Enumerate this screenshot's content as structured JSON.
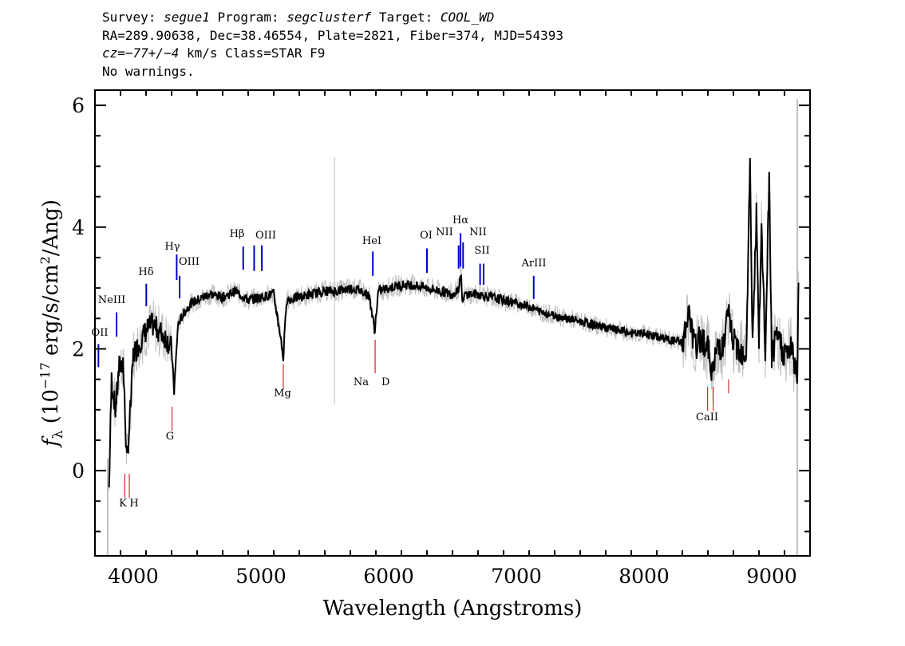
{
  "header": {
    "survey_label": "Survey:",
    "survey": "segue1",
    "program_label": "Program:",
    "program": "segclusterf",
    "target_label": "Target:",
    "target": "COOL_WD",
    "line2": "RA=289.90638, Dec=38.46554, Plate=2821, Fiber=374, MJD=54393",
    "cz": "cz=−77+/−4",
    "class_text": " km/s Class=STAR F9",
    "warnings": "No warnings."
  },
  "chart_data": {
    "type": "line",
    "xlabel": "Wavelength (Angstroms)",
    "ylabel": "f_λ (10^-17 erg/s/cm^2/Ang)",
    "xlim": [
      3700,
      9300
    ],
    "ylim": [
      -1.4,
      6.25
    ],
    "xticks": [
      "4000",
      "5000",
      "6000",
      "7000",
      "8000",
      "9000"
    ],
    "yticks": [
      "0",
      "2",
      "4",
      "6"
    ],
    "colors": {
      "data": "#c0c0c0",
      "model": "#000000",
      "emission": "#0000cc",
      "absorption": "#cc0000"
    },
    "series": [
      {
        "name": "",
        "x": [
          3810,
          3830,
          3860,
          3890,
          3920,
          3950,
          3980,
          4000,
          4050,
          4100,
          4150,
          4200,
          4250,
          4300,
          4320,
          4350,
          4400,
          4450,
          4500,
          4600,
          4700,
          4800,
          4900,
          5000,
          5100,
          5150,
          5175,
          5200,
          5300,
          5400,
          5500,
          5600,
          5700,
          5800,
          5850,
          5890,
          5920,
          6000,
          6100,
          6200,
          6300,
          6400,
          6500,
          6550,
          6565,
          6580,
          6600,
          6700,
          6800,
          6900,
          7000,
          7100,
          7200,
          7300,
          7400,
          7500,
          7600,
          7700,
          7800,
          7900,
          8000,
          8100,
          8200,
          8300,
          8350,
          8400,
          8450,
          8500,
          8540,
          8580,
          8620,
          8660,
          8700,
          8750,
          8800,
          8830,
          8850,
          8880,
          8900,
          8920,
          8950,
          8980,
          9000,
          9050,
          9100,
          9150,
          9200,
          9210
        ],
        "values": [
          -0.3,
          1.5,
          1.0,
          1.7,
          1.8,
          0.1,
          1.1,
          1.9,
          2.1,
          2.3,
          2.4,
          2.3,
          2.2,
          2.0,
          1.3,
          2.4,
          2.6,
          2.75,
          2.8,
          2.9,
          2.85,
          2.95,
          2.8,
          2.85,
          2.9,
          2.25,
          1.85,
          2.8,
          2.85,
          2.9,
          2.95,
          2.95,
          3.0,
          2.95,
          2.85,
          2.3,
          2.95,
          3.0,
          3.05,
          3.05,
          3.0,
          2.95,
          2.9,
          3.0,
          3.25,
          2.75,
          2.9,
          2.9,
          2.85,
          2.8,
          2.75,
          2.7,
          2.6,
          2.55,
          2.5,
          2.45,
          2.4,
          2.35,
          2.3,
          2.25,
          2.25,
          2.2,
          2.15,
          2.1,
          2.55,
          2.0,
          2.2,
          2.0,
          1.6,
          2.1,
          2.0,
          2.6,
          2.1,
          2.0,
          1.9,
          5.0,
          2.1,
          4.2,
          2.0,
          4.0,
          1.9,
          4.8,
          1.9,
          2.2,
          1.9,
          2.0,
          1.6,
          3.0
        ]
      }
    ],
    "lines": [
      {
        "label": "OII",
        "wavelength": 3727,
        "kind": "emission"
      },
      {
        "label": "NeIII",
        "wavelength": 3869,
        "kind": "emission"
      },
      {
        "label": "Hδ",
        "wavelength": 4102,
        "kind": "emission"
      },
      {
        "label": "Hγ",
        "wavelength": 4340,
        "kind": "emission"
      },
      {
        "label": "OIII",
        "wavelength": 4363,
        "kind": "emission"
      },
      {
        "label": "Hβ",
        "wavelength": 4861,
        "kind": "emission"
      },
      {
        "label": "OIII",
        "wavelength": 4959,
        "kind": "emission"
      },
      {
        "label": "OIII",
        "wavelength": 5007,
        "kind": "emission"
      },
      {
        "label": "HeI",
        "wavelength": 5876,
        "kind": "emission"
      },
      {
        "label": "OI",
        "wavelength": 6300,
        "kind": "emission"
      },
      {
        "label": "NII",
        "wavelength": 6548,
        "kind": "emission"
      },
      {
        "label": "Hα",
        "wavelength": 6563,
        "kind": "emission"
      },
      {
        "label": "NII",
        "wavelength": 6583,
        "kind": "emission"
      },
      {
        "label": "SII",
        "wavelength": 6716,
        "kind": "emission"
      },
      {
        "label": "SII",
        "wavelength": 6731,
        "kind": "emission"
      },
      {
        "label": "ArIII",
        "wavelength": 7136,
        "kind": "emission"
      },
      {
        "label": "K",
        "wavelength": 3934,
        "kind": "absorption"
      },
      {
        "label": "H",
        "wavelength": 3969,
        "kind": "absorption"
      },
      {
        "label": "G",
        "wavelength": 4304,
        "kind": "absorption"
      },
      {
        "label": "Mg",
        "wavelength": 5175,
        "kind": "absorption"
      },
      {
        "label": "Na",
        "wavelength": 5894,
        "kind": "absorption"
      },
      {
        "label": "D",
        "wavelength": 5894,
        "kind": "absorption"
      },
      {
        "label": "CaII",
        "wavelength": 8498,
        "kind": "absorption"
      },
      {
        "label": "CaII",
        "wavelength": 8542,
        "kind": "absorption"
      },
      {
        "label": "CaII",
        "wavelength": 8662,
        "kind": "absorption"
      }
    ]
  }
}
